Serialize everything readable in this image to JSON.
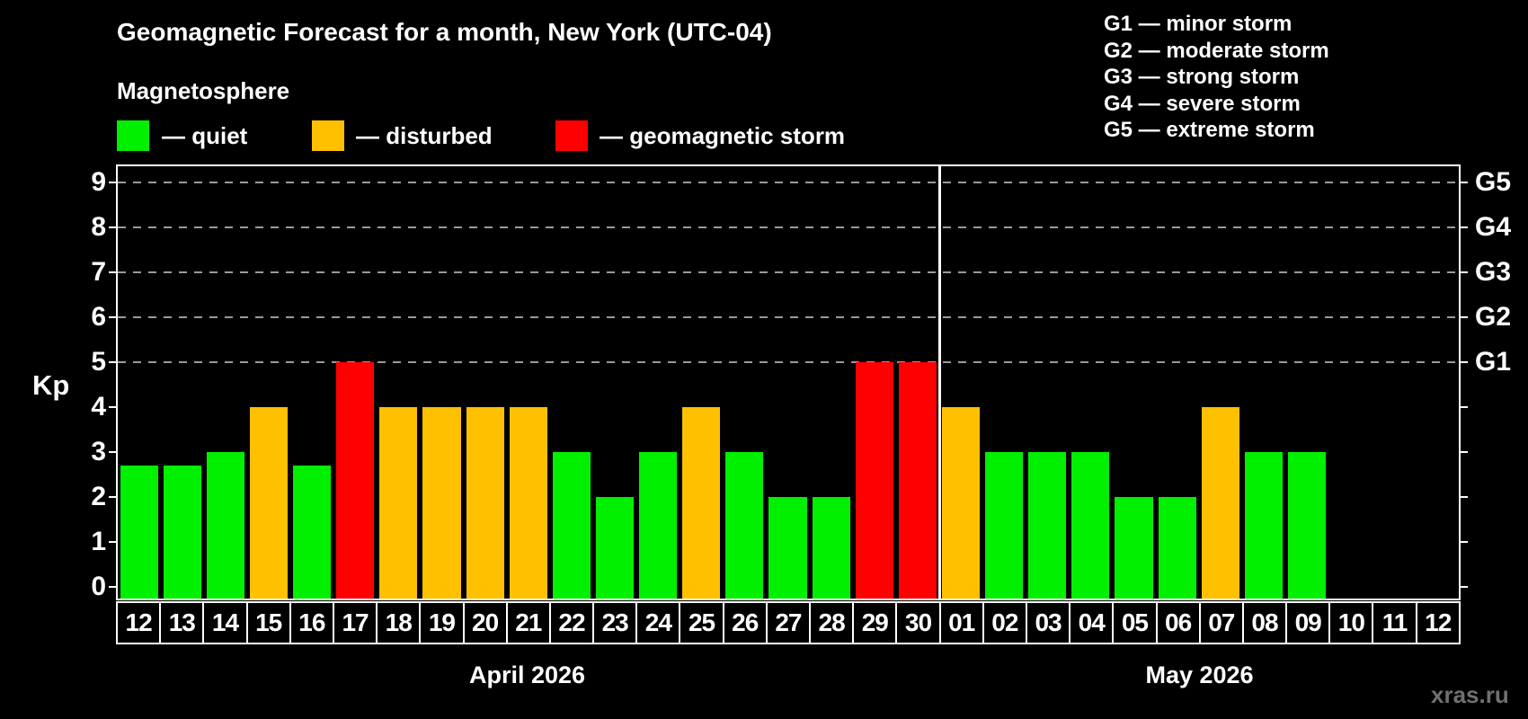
{
  "header": {
    "title": "Geomagnetic Forecast for a month, New York (UTC-04)",
    "subtitle": "Magnetosphere"
  },
  "legend": {
    "items": [
      {
        "status": "quiet",
        "label": "— quiet"
      },
      {
        "status": "disturbed",
        "label": "— disturbed"
      },
      {
        "status": "storm",
        "label": "— geomagnetic storm"
      }
    ]
  },
  "storm_scale": {
    "items": [
      "G1 — minor storm",
      "G2 — moderate storm",
      "G3 — strong storm",
      "G4 — severe storm",
      "G5 — extreme storm"
    ]
  },
  "watermark": "xras.ru",
  "colors": {
    "quiet": "#00f000",
    "disturbed": "#ffc000",
    "storm": "#ff0000",
    "axis": "#ffffff",
    "grid": "#9a9a9a",
    "background": "#000000",
    "watermark": "#707070"
  },
  "chart_data": {
    "type": "bar",
    "title": "Geomagnetic Forecast for a month, New York (UTC-04)",
    "subtitle": "Magnetosphere",
    "ylabel": "Kp",
    "ylim": [
      0,
      9.3
    ],
    "yticks": [
      0,
      1,
      2,
      3,
      4,
      5,
      6,
      7,
      8,
      9
    ],
    "grid_levels": [
      5,
      6,
      7,
      8,
      9
    ],
    "grid_style": "dashed",
    "right_axis": [
      {
        "kp": 5,
        "label": "G1"
      },
      {
        "kp": 6,
        "label": "G2"
      },
      {
        "kp": 7,
        "label": "G3"
      },
      {
        "kp": 8,
        "label": "G4"
      },
      {
        "kp": 9,
        "label": "G5"
      }
    ],
    "months": [
      {
        "label": "April 2026",
        "days": 19
      },
      {
        "label": "May 2026",
        "days": 12
      }
    ],
    "bars": [
      {
        "day": "12",
        "month": "April",
        "kp": 2.7,
        "status": "quiet"
      },
      {
        "day": "13",
        "month": "April",
        "kp": 2.7,
        "status": "quiet"
      },
      {
        "day": "14",
        "month": "April",
        "kp": 3,
        "status": "quiet"
      },
      {
        "day": "15",
        "month": "April",
        "kp": 4,
        "status": "disturbed"
      },
      {
        "day": "16",
        "month": "April",
        "kp": 2.7,
        "status": "quiet"
      },
      {
        "day": "17",
        "month": "April",
        "kp": 5,
        "status": "storm"
      },
      {
        "day": "18",
        "month": "April",
        "kp": 4,
        "status": "disturbed"
      },
      {
        "day": "19",
        "month": "April",
        "kp": 4,
        "status": "disturbed"
      },
      {
        "day": "20",
        "month": "April",
        "kp": 4,
        "status": "disturbed"
      },
      {
        "day": "21",
        "month": "April",
        "kp": 4,
        "status": "disturbed"
      },
      {
        "day": "22",
        "month": "April",
        "kp": 3,
        "status": "quiet"
      },
      {
        "day": "23",
        "month": "April",
        "kp": 2,
        "status": "quiet"
      },
      {
        "day": "24",
        "month": "April",
        "kp": 3,
        "status": "quiet"
      },
      {
        "day": "25",
        "month": "April",
        "kp": 4,
        "status": "disturbed"
      },
      {
        "day": "26",
        "month": "April",
        "kp": 3,
        "status": "quiet"
      },
      {
        "day": "27",
        "month": "April",
        "kp": 2,
        "status": "quiet"
      },
      {
        "day": "28",
        "month": "April",
        "kp": 2,
        "status": "quiet"
      },
      {
        "day": "29",
        "month": "April",
        "kp": 5,
        "status": "storm"
      },
      {
        "day": "30",
        "month": "April",
        "kp": 5,
        "status": "storm"
      },
      {
        "day": "01",
        "month": "May",
        "kp": 4,
        "status": "disturbed"
      },
      {
        "day": "02",
        "month": "May",
        "kp": 3,
        "status": "quiet"
      },
      {
        "day": "03",
        "month": "May",
        "kp": 3,
        "status": "quiet"
      },
      {
        "day": "04",
        "month": "May",
        "kp": 3,
        "status": "quiet"
      },
      {
        "day": "05",
        "month": "May",
        "kp": 2,
        "status": "quiet"
      },
      {
        "day": "06",
        "month": "May",
        "kp": 2,
        "status": "quiet"
      },
      {
        "day": "07",
        "month": "May",
        "kp": 4,
        "status": "disturbed"
      },
      {
        "day": "08",
        "month": "May",
        "kp": 3,
        "status": "quiet"
      },
      {
        "day": "09",
        "month": "May",
        "kp": 3,
        "status": "quiet"
      },
      {
        "day": "10",
        "month": "May",
        "kp": null,
        "status": "none"
      },
      {
        "day": "11",
        "month": "May",
        "kp": null,
        "status": "none"
      },
      {
        "day": "12",
        "month": "May",
        "kp": null,
        "status": "none"
      }
    ]
  }
}
